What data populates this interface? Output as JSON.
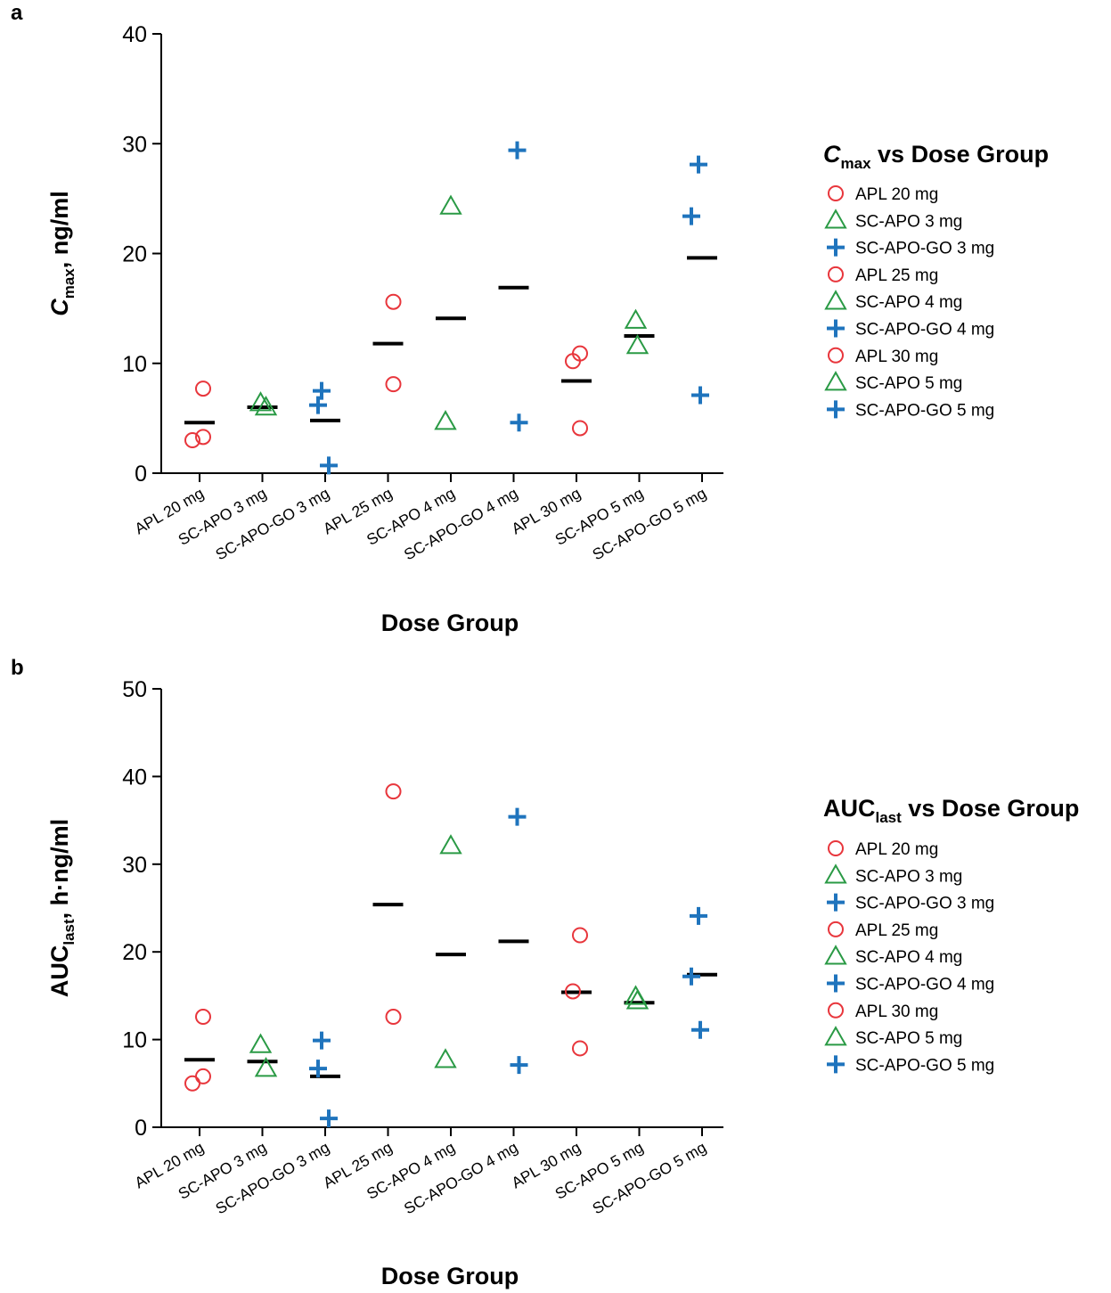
{
  "colors": {
    "APL": "#e8363c",
    "SC-APO": "#2a9a45",
    "SC-APO-GO": "#1f74bd",
    "median": "#000000"
  },
  "categories": [
    "APL 20 mg",
    "SC-APO 3 mg",
    "SC-APO-GO 3 mg",
    "APL 25 mg",
    "SC-APO 4 mg",
    "SC-APO-GO 4 mg",
    "APL 30 mg",
    "SC-APO 5 mg",
    "SC-APO-GO 5 mg"
  ],
  "chart_data": [
    {
      "panel": "a",
      "type": "scatter",
      "ylabel_main": "C",
      "ylabel_sub": "max",
      "ylabel_unit": ", ng/ml",
      "xlabel": "Dose Group",
      "ylim": [
        0,
        40
      ],
      "yticks": [
        0,
        10,
        20,
        30,
        40
      ],
      "legend_title_main": "C",
      "legend_title_sub": "max",
      "legend_title_rest": " vs Dose Group",
      "legend_placement": "right",
      "series": [
        {
          "name": "APL 20 mg",
          "marker": "circle",
          "group": "APL",
          "values": [
            3.0,
            3.3,
            7.7
          ],
          "median": 4.6
        },
        {
          "name": "SC-APO 3 mg",
          "marker": "triangle",
          "group": "SC-APO",
          "values": [
            6.0,
            6.4
          ],
          "median": 6.0
        },
        {
          "name": "SC-APO-GO 3 mg",
          "marker": "plus",
          "group": "SC-APO-GO",
          "values": [
            0.7,
            6.2,
            7.5
          ],
          "median": 4.8
        },
        {
          "name": "APL 25 mg",
          "marker": "circle",
          "group": "APL",
          "values": [
            8.1,
            15.6
          ],
          "median": 11.8
        },
        {
          "name": "SC-APO 4 mg",
          "marker": "triangle",
          "group": "SC-APO",
          "values": [
            4.7,
            24.3
          ],
          "median": 14.1
        },
        {
          "name": "SC-APO-GO 4 mg",
          "marker": "plus",
          "group": "SC-APO-GO",
          "values": [
            4.6,
            29.4
          ],
          "median": 16.9
        },
        {
          "name": "APL 30 mg",
          "marker": "circle",
          "group": "APL",
          "values": [
            4.1,
            10.2,
            10.9
          ],
          "median": 8.4
        },
        {
          "name": "SC-APO 5 mg",
          "marker": "triangle",
          "group": "SC-APO",
          "values": [
            11.6,
            13.9
          ],
          "median": 12.5
        },
        {
          "name": "SC-APO-GO 5 mg",
          "marker": "plus",
          "group": "SC-APO-GO",
          "values": [
            7.1,
            23.4,
            28.1
          ],
          "median": 19.6
        }
      ]
    },
    {
      "panel": "b",
      "type": "scatter",
      "ylabel_main": "AUC",
      "ylabel_sub": "last",
      "ylabel_unit": ", h·ng/ml",
      "xlabel": "Dose Group",
      "ylim": [
        0,
        50
      ],
      "yticks": [
        0,
        10,
        20,
        30,
        40,
        50
      ],
      "legend_title_main": "AUC",
      "legend_title_sub": "last",
      "legend_title_rest": " vs Dose Group",
      "legend_placement": "right",
      "series": [
        {
          "name": "APL 20 mg",
          "marker": "circle",
          "group": "APL",
          "values": [
            5.0,
            5.8,
            12.6
          ],
          "median": 7.7
        },
        {
          "name": "SC-APO 3 mg",
          "marker": "triangle",
          "group": "SC-APO",
          "values": [
            6.7,
            9.4
          ],
          "median": 7.5
        },
        {
          "name": "SC-APO-GO 3 mg",
          "marker": "plus",
          "group": "SC-APO-GO",
          "values": [
            1.0,
            6.7,
            9.9
          ],
          "median": 5.8
        },
        {
          "name": "APL 25 mg",
          "marker": "circle",
          "group": "APL",
          "values": [
            12.6,
            38.3
          ],
          "median": 25.4
        },
        {
          "name": "SC-APO 4 mg",
          "marker": "triangle",
          "group": "SC-APO",
          "values": [
            7.7,
            32.1
          ],
          "median": 19.7
        },
        {
          "name": "SC-APO-GO 4 mg",
          "marker": "plus",
          "group": "SC-APO-GO",
          "values": [
            7.1,
            35.4
          ],
          "median": 21.2
        },
        {
          "name": "APL 30 mg",
          "marker": "circle",
          "group": "APL",
          "values": [
            9.0,
            15.5,
            21.9
          ],
          "median": 15.4
        },
        {
          "name": "SC-APO 5 mg",
          "marker": "triangle",
          "group": "SC-APO",
          "values": [
            14.4,
            14.9
          ],
          "median": 14.2
        },
        {
          "name": "SC-APO-GO 5 mg",
          "marker": "plus",
          "group": "SC-APO-GO",
          "values": [
            11.1,
            17.2,
            24.1
          ],
          "median": 17.4
        }
      ]
    }
  ]
}
